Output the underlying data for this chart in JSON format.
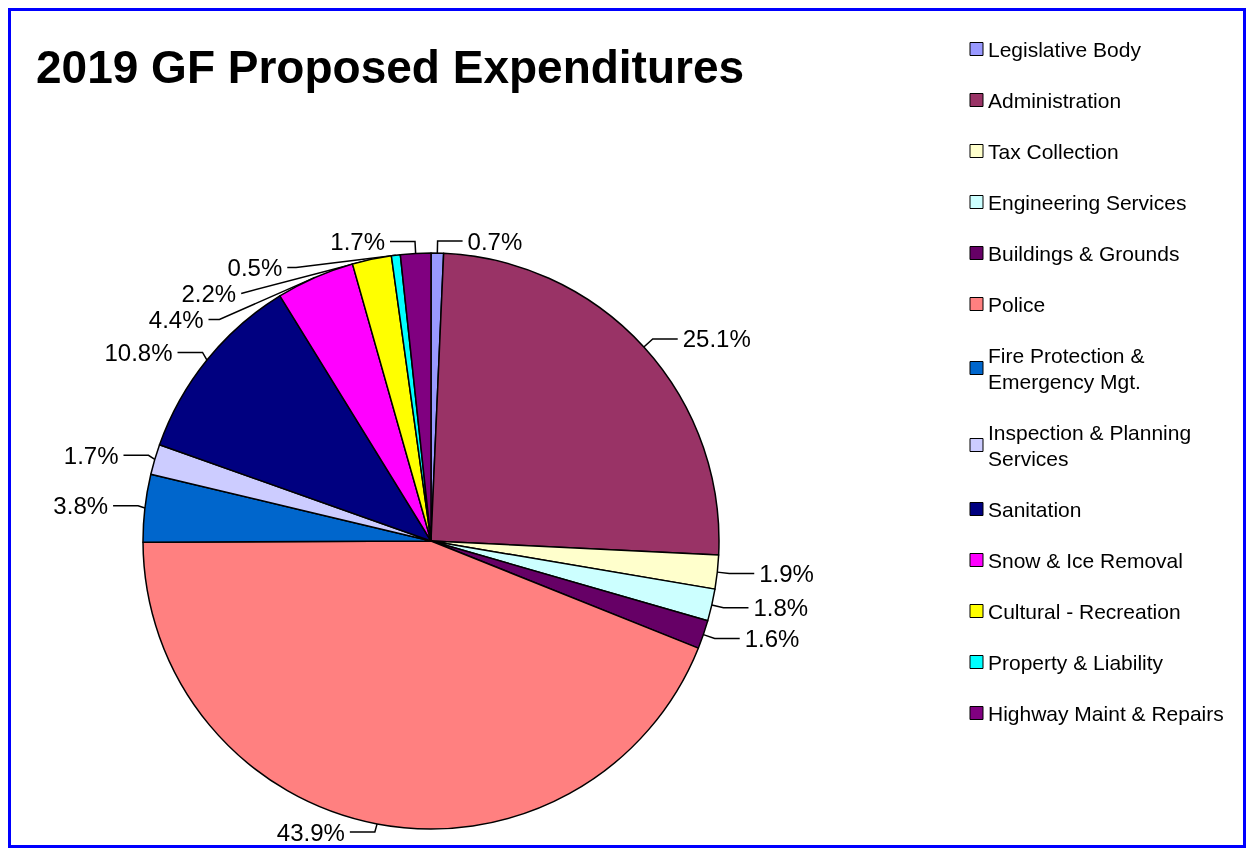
{
  "chart_data": {
    "type": "pie",
    "title": "2019 GF Proposed Expenditures",
    "categories": [
      "Legislative Body",
      "Administration",
      "Tax Collection",
      "Engineering Services",
      "Buildings & Grounds",
      "Police",
      "Fire Protection & Emergency Mgt.",
      "Inspection & Planning Services",
      "Sanitation",
      "Snow & Ice Removal",
      "Cultural - Recreation",
      "Property & Liability",
      "Highway Maint & Repairs"
    ],
    "values": [
      0.7,
      25.1,
      1.9,
      1.8,
      1.6,
      43.9,
      3.8,
      1.7,
      10.8,
      4.4,
      2.2,
      0.5,
      1.7
    ],
    "value_labels": [
      "0.7%",
      "25.1%",
      "1.9%",
      "1.8%",
      "1.6%",
      "43.9%",
      "3.8%",
      "1.7%",
      "10.8%",
      "4.4%",
      "2.2%",
      "0.5%",
      "1.7%"
    ],
    "colors": [
      "#9999ff",
      "#993366",
      "#ffffcc",
      "#ccffff",
      "#660066",
      "#ff8080",
      "#0066cc",
      "#ccccff",
      "#000080",
      "#ff00ff",
      "#ffff00",
      "#00ffff",
      "#800080"
    ],
    "legend": "right"
  }
}
